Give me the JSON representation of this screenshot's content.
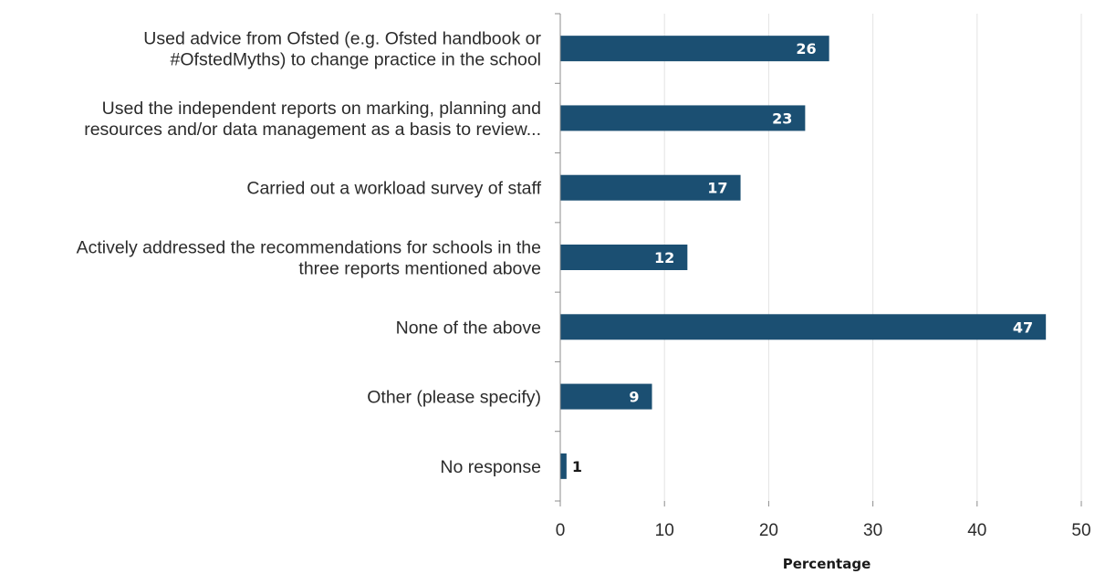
{
  "chart_data": {
    "type": "bar",
    "orientation": "horizontal",
    "categories": [
      [
        "Used advice from Ofsted (e.g. Ofsted handbook or",
        "#OfstedMyths) to change practice in the school"
      ],
      [
        "Used the independent reports on marking, planning and",
        "resources and/or data management as a basis to review..."
      ],
      [
        "Carried out a workload survey of staff"
      ],
      [
        "Actively addressed the recommendations for schools in the",
        "three reports mentioned above"
      ],
      [
        "None of the above"
      ],
      [
        "Other (please specify)"
      ],
      [
        "No response"
      ]
    ],
    "values": [
      26,
      23,
      17,
      12,
      47,
      9,
      1
    ],
    "value_labels": [
      "26",
      "23",
      "17",
      "12",
      "47",
      "9",
      "1"
    ],
    "bar_values": [
      25.8,
      23.5,
      17.3,
      12.2,
      46.6,
      8.8,
      0.6
    ],
    "xlabel": "Percentage",
    "xlim": [
      0,
      50
    ],
    "xticks": [
      0,
      10,
      20,
      30,
      40,
      50
    ],
    "grid": "vertical",
    "legend": "none",
    "colors": {
      "bar": "#1b4f72",
      "grid": "#e3e3e3",
      "axis": "#8c8c8c",
      "label_inside": "#ffffff",
      "label_outside": "#1a1a1a"
    }
  }
}
